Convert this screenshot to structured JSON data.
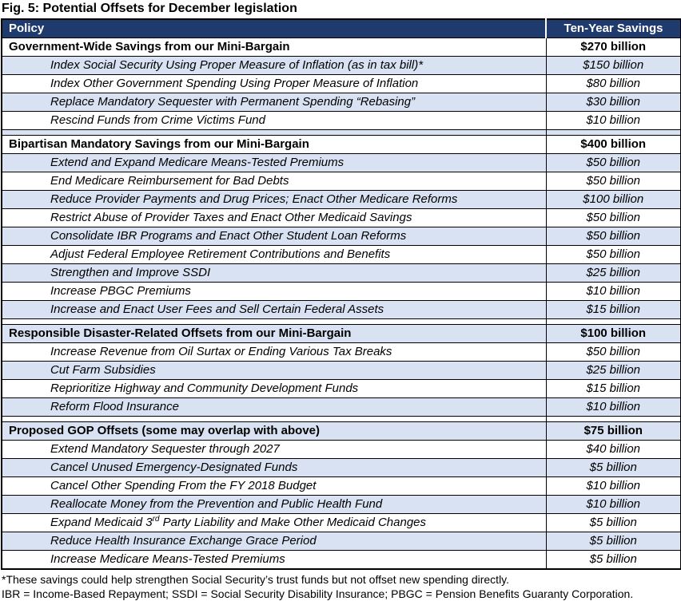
{
  "chart_data": {
    "type": "table",
    "title": "Fig. 5: Potential Offsets for December legislation",
    "columns": [
      "Policy",
      "Ten-Year Savings"
    ],
    "rows": [
      {
        "kind": "section",
        "policy": "Government-Wide Savings from our Mini-Bargain",
        "savings": "$270 billion"
      },
      {
        "kind": "item",
        "policy": "Index Social Security Using Proper Measure of Inflation (as in tax bill)*",
        "savings": "$150 billion"
      },
      {
        "kind": "item",
        "policy": "Index Other Government Spending Using Proper Measure of Inflation",
        "savings": "$80 billion"
      },
      {
        "kind": "item",
        "policy": "Replace Mandatory Sequester with Permanent Spending “Rebasing”",
        "savings": "$30 billion"
      },
      {
        "kind": "item",
        "policy": "Rescind Funds from Crime Victims Fund",
        "savings": "$10 billion"
      },
      {
        "kind": "spacer"
      },
      {
        "kind": "section",
        "policy": "Bipartisan Mandatory Savings from our Mini-Bargain",
        "savings": "$400 billion"
      },
      {
        "kind": "item",
        "policy": "Extend and Expand Medicare Means-Tested Premiums",
        "savings": "$50 billion"
      },
      {
        "kind": "item",
        "policy": "End Medicare Reimbursement for Bad Debts",
        "savings": "$50 billion"
      },
      {
        "kind": "item",
        "policy": "Reduce Provider Payments and Drug Prices; Enact Other Medicare Reforms",
        "savings": "$100 billion"
      },
      {
        "kind": "item",
        "policy": "Restrict Abuse of Provider Taxes and Enact Other Medicaid Savings",
        "savings": "$50 billion"
      },
      {
        "kind": "item",
        "policy": "Consolidate IBR Programs and Enact Other Student Loan Reforms",
        "savings": "$50 billion"
      },
      {
        "kind": "item",
        "policy": "Adjust Federal Employee Retirement Contributions and Benefits",
        "savings": "$50 billion"
      },
      {
        "kind": "item",
        "policy": "Strengthen and Improve SSDI",
        "savings": "$25 billion"
      },
      {
        "kind": "item",
        "policy": "Increase PBGC Premiums",
        "savings": "$10 billion"
      },
      {
        "kind": "item",
        "policy": "Increase and Enact User Fees and Sell Certain Federal Assets",
        "savings": "$15 billion"
      },
      {
        "kind": "spacer"
      },
      {
        "kind": "section",
        "policy": "Responsible Disaster-Related Offsets from our Mini-Bargain",
        "savings": "$100 billion"
      },
      {
        "kind": "item",
        "policy": "Increase Revenue from Oil Surtax or Ending Various Tax Breaks",
        "savings": "$50 billion"
      },
      {
        "kind": "item",
        "policy": "Cut Farm Subsidies",
        "savings": "$25 billion"
      },
      {
        "kind": "item",
        "policy": "Reprioritize Highway and Community Development Funds",
        "savings": "$15 billion"
      },
      {
        "kind": "item",
        "policy": "Reform Flood Insurance",
        "savings": "$10 billion"
      },
      {
        "kind": "spacer"
      },
      {
        "kind": "section",
        "policy": "Proposed GOP Offsets (some may overlap with above)",
        "savings": "$75 billion"
      },
      {
        "kind": "item",
        "policy": "Extend Mandatory Sequester through 2027",
        "savings": "$40 billion"
      },
      {
        "kind": "item",
        "policy": "Cancel Unused Emergency-Designated Funds",
        "savings": "$5 billion"
      },
      {
        "kind": "item",
        "policy": "Cancel Other Spending From the FY 2018 Budget",
        "savings": "$10 billion"
      },
      {
        "kind": "item",
        "policy": "Reallocate Money from the Prevention and Public Health Fund",
        "savings": "$10 billion"
      },
      {
        "kind": "item",
        "policy_parts": [
          {
            "t": "Expand Medicaid 3"
          },
          {
            "t": "rd",
            "sup": true
          },
          {
            "t": " Party Liability and Make Other Medicaid Changes"
          }
        ],
        "savings": "$5 billion"
      },
      {
        "kind": "item",
        "policy": "Reduce Health Insurance Exchange Grace Period",
        "savings": "$5 billion"
      },
      {
        "kind": "item",
        "policy": "Increase Medicare Means-Tested Premiums",
        "savings": "$5 billion"
      }
    ],
    "footnotes": [
      "*These savings could help strengthen Social Security’s trust funds but not offset new spending directly.",
      "IBR = Income-Based Repayment; SSDI = Social Security Disability Insurance; PBGC = Pension Benefits Guaranty Corporation."
    ],
    "colors": {
      "header_bg": "#1F3B6E",
      "header_text": "#FFFFFF",
      "row_alt_bg": "#D9E2F2",
      "row_bg": "#FFFFFF",
      "border": "#000000"
    },
    "layout": {
      "legend": "none",
      "grid": "all-borders",
      "row_shading": "alternating white / light blue, starting white at first section row; spacer rows participate in alternation"
    }
  }
}
